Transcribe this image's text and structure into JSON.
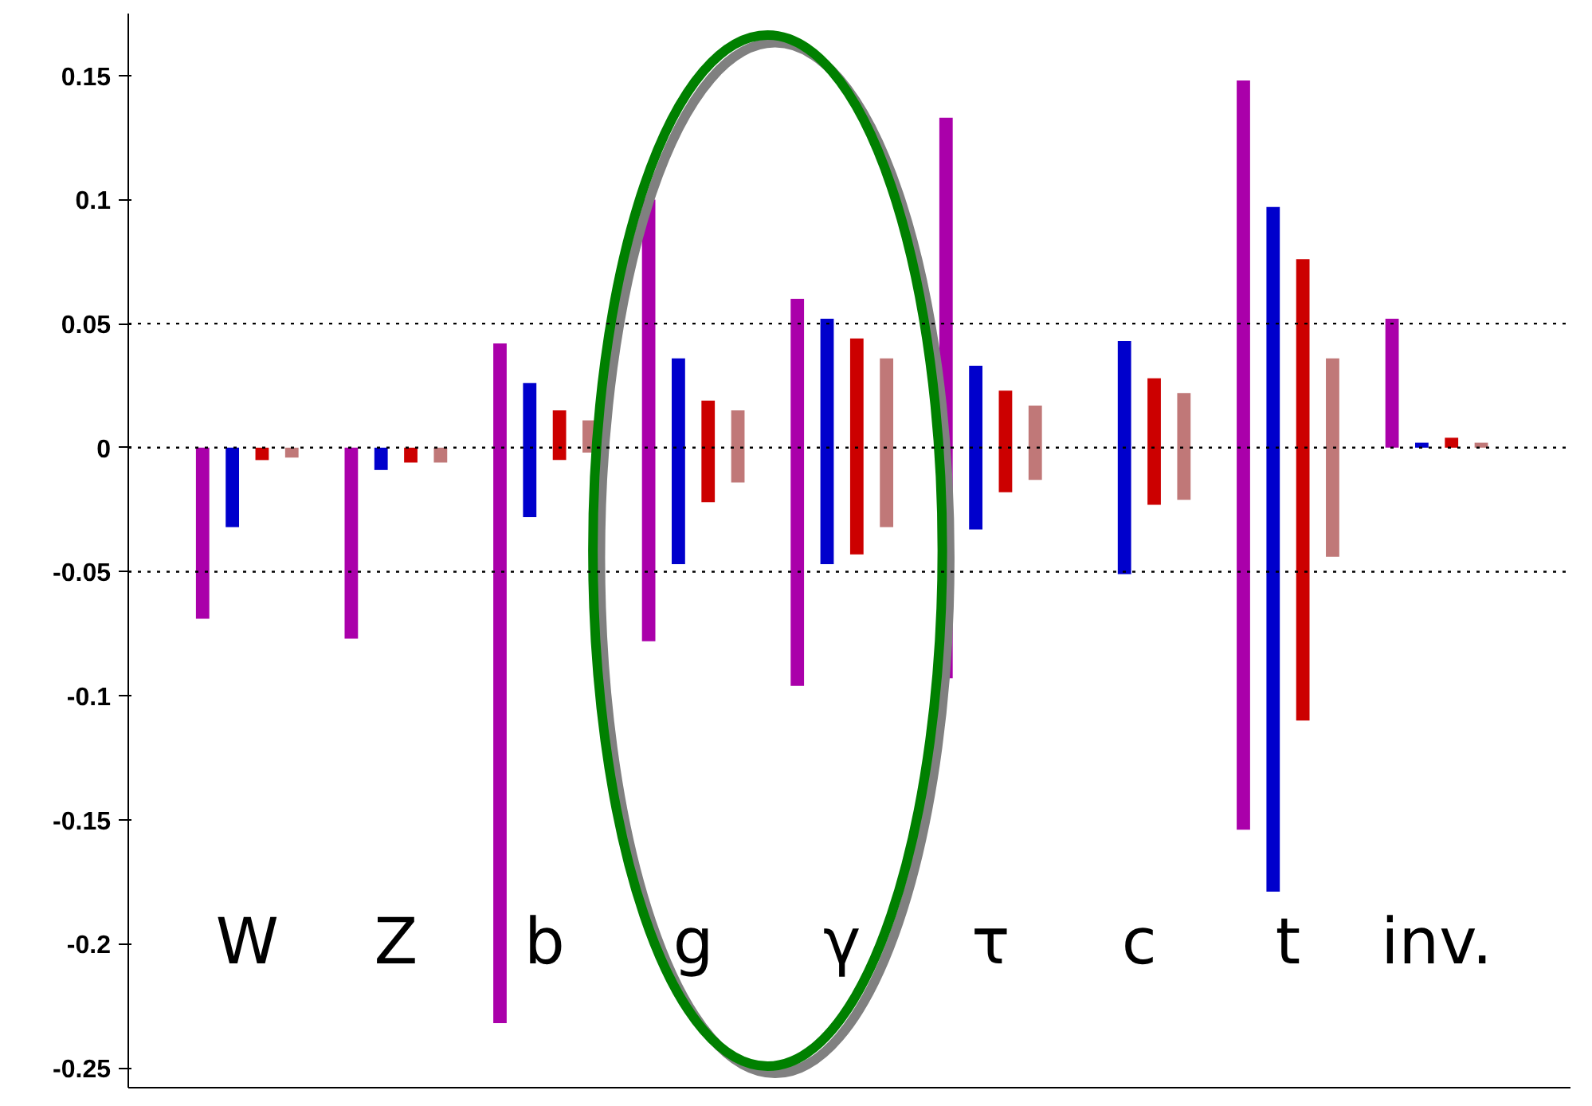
{
  "chart_data": {
    "type": "bar",
    "categories": [
      "W",
      "Z",
      "b",
      "g",
      "γ",
      "τ",
      "c",
      "t",
      "inv."
    ],
    "series": [
      {
        "color": "#aa00aa",
        "base": [
          -0.069,
          -0.077,
          -0.232,
          -0.078,
          -0.096,
          -0.093,
          null,
          -0.154,
          0
        ],
        "values": [
          0.069,
          0.077,
          0.274,
          0.178,
          0.156,
          0.226,
          null,
          0.302,
          0.052
        ]
      },
      {
        "color": "#0000cc",
        "base": [
          -0.032,
          -0.009,
          -0.028,
          -0.047,
          -0.047,
          -0.033,
          -0.051,
          -0.179,
          0
        ],
        "values": [
          0.032,
          0.009,
          0.054,
          0.083,
          0.099,
          0.066,
          0.094,
          0.276,
          0.002
        ]
      },
      {
        "color": "#cc0000",
        "base": [
          -0.005,
          -0.006,
          -0.005,
          -0.022,
          -0.043,
          -0.018,
          -0.023,
          -0.11,
          0
        ],
        "values": [
          0.005,
          0.006,
          0.02,
          0.041,
          0.087,
          0.041,
          0.051,
          0.186,
          0.004
        ]
      },
      {
        "color": "#c07878",
        "base": [
          -0.004,
          -0.006,
          -0.002,
          -0.014,
          -0.032,
          -0.013,
          -0.021,
          -0.044,
          0
        ],
        "values": [
          0.004,
          0.006,
          0.013,
          0.029,
          0.068,
          0.03,
          0.043,
          0.08,
          0.002
        ]
      }
    ],
    "ylim": [
      -0.258,
      0.175
    ],
    "yticks": [
      -0.25,
      -0.2,
      -0.15,
      -0.1,
      -0.05,
      0,
      0.05,
      0.1,
      0.15
    ],
    "ref_lines": [
      {
        "axis": "y",
        "value": 0.05,
        "line_style": "dotted"
      },
      {
        "axis": "y",
        "value": 0,
        "line_style": "dotted"
      },
      {
        "axis": "y",
        "value": -0.05,
        "line_style": "dotted"
      }
    ],
    "tick_labels": "y",
    "grid": false
  }
}
